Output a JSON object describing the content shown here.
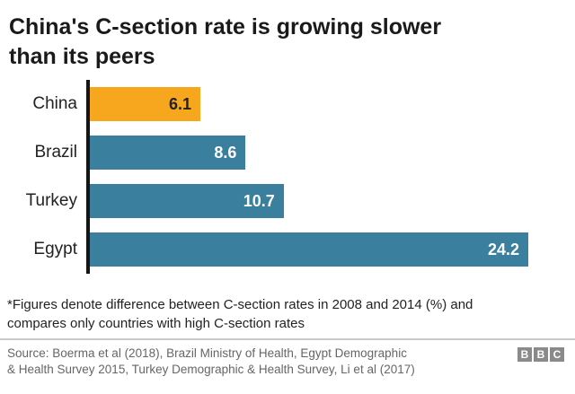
{
  "title_lines": [
    "China's C-section rate is growing slower",
    "than its peers"
  ],
  "chart_data": {
    "type": "bar",
    "orientation": "horizontal",
    "categories": [
      "China",
      "Brazil",
      "Turkey",
      "Egypt"
    ],
    "values": [
      6.1,
      8.6,
      10.7,
      24.2
    ],
    "value_labels": [
      "6.1",
      "8.6",
      "10.7",
      "24.2"
    ],
    "xlim": [
      0,
      24.2
    ],
    "grid": false,
    "legend": false,
    "highlight_index": 0,
    "highlight_color": "#f7a71d",
    "bar_color": "#3a7f9e",
    "highlight_value_color": "#222222",
    "value_color": "#ffffff",
    "axis_color": "#151515"
  },
  "footnote_lines": [
    "*Figures denote difference between C-section rates in 2008 and 2014 (%) and",
    "compares only countries with high C-section rates"
  ],
  "source_lines": [
    "Source: Boerma et al (2018), Brazil Ministry of Health, Egypt Demographic",
    "& Health Survey 2015, Turkey Demographic & Health Survey, Li et al (2017)"
  ],
  "logo_letters": [
    "B",
    "B",
    "C"
  ]
}
